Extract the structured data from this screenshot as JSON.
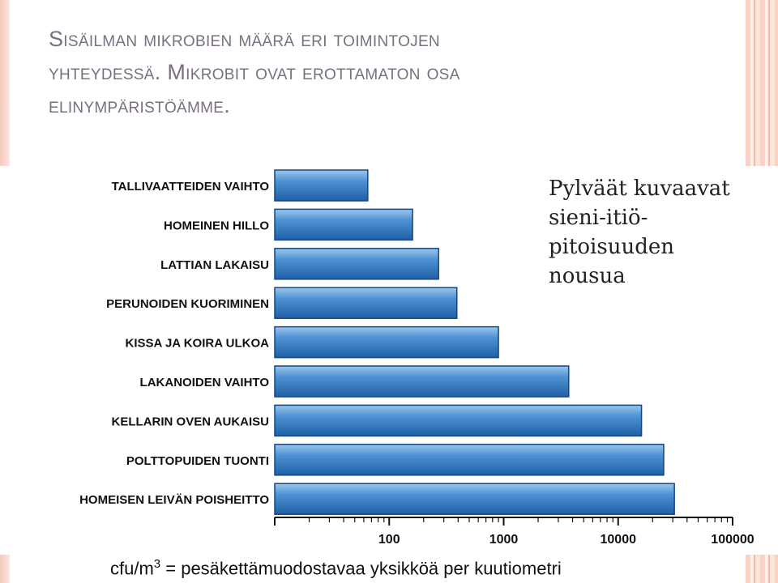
{
  "slide": {
    "title_lines": [
      "Sisäilman mikrobien määrä eri toimintojen",
      "yhteydessä. Mikrobit ovat erottamaton osa",
      "elinympäristöämme."
    ],
    "note_lines": [
      "Pylväät kuvaavat",
      "sieni-itiö-",
      "pitoisuuden",
      "nousua"
    ],
    "footnote": {
      "prefix": "cfu/m",
      "sup": "3",
      "suffix": " = pesäkettämuodostavaa yksikköä per kuutiometri"
    },
    "accent_color": "#e8a08a"
  },
  "chart_data": {
    "type": "bar",
    "orientation": "horizontal",
    "x_scale": "log",
    "categories": [
      "TALLIVAATTEIDEN VAIHTO",
      "HOMEINEN HILLO",
      "LATTIAN LAKAISU",
      "PERUNOIDEN KUORIMINEN",
      "KISSA JA KOIRA ULKOA",
      "LAKANOIDEN VAIHTO",
      "KELLARIN OVEN AUKAISU",
      "POLTTOPUIDEN TUONTI",
      "HOMEISEN LEIVÄN POISHEITTO"
    ],
    "values": [
      65,
      160,
      270,
      390,
      900,
      3700,
      16000,
      25000,
      31000
    ],
    "xlim": [
      10,
      100000
    ],
    "xticks": [
      100,
      1000,
      10000,
      100000
    ],
    "xtick_labels": [
      "100",
      "1000",
      "10000",
      "100000"
    ],
    "bar_color": "#3f86cc",
    "grid": false
  }
}
